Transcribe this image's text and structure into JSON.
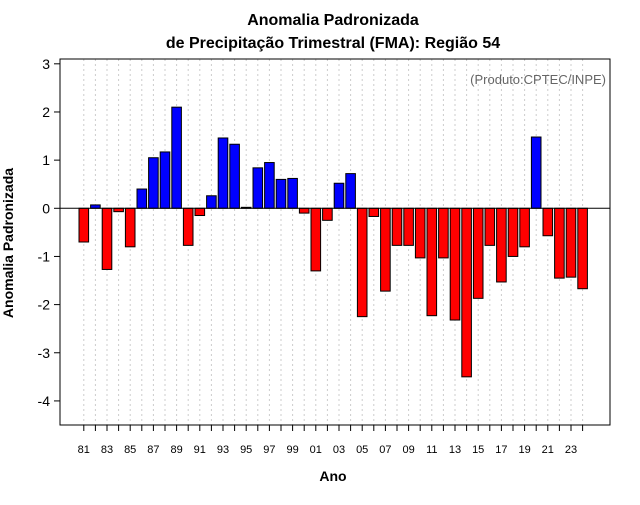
{
  "chart_data": {
    "type": "bar",
    "title_line1": "Anomalia Padronizada",
    "title_line2": "de Precipitação Trimestral (FMA): Região 54",
    "annotation": "(Produto:CPTEC/INPE)",
    "xlabel": "Ano",
    "ylabel": "Anomalia Padronizada",
    "ylim": [
      -4.5,
      3.1
    ],
    "yticks": [
      3,
      2,
      1,
      0,
      -1,
      -2,
      -3,
      -4
    ],
    "ytick_labels": [
      "3",
      "2",
      "1",
      "0",
      "-1",
      "-2",
      "-3",
      "-4"
    ],
    "grid": "vertical dotted",
    "positive_color": "#0000ff",
    "negative_color": "#ff0000",
    "categories": [
      "81",
      "82",
      "83",
      "84",
      "85",
      "86",
      "87",
      "88",
      "89",
      "90",
      "91",
      "92",
      "93",
      "94",
      "95",
      "96",
      "97",
      "98",
      "99",
      "00",
      "01",
      "02",
      "03",
      "04",
      "05",
      "06",
      "07",
      "08",
      "09",
      "10",
      "11",
      "12",
      "13",
      "14",
      "15",
      "16",
      "17",
      "18",
      "19",
      "20",
      "21",
      "22",
      "23",
      "24"
    ],
    "xtick_labels": [
      "81",
      "83",
      "85",
      "87",
      "89",
      "91",
      "93",
      "95",
      "97",
      "99",
      "01",
      "03",
      "05",
      "07",
      "09",
      "11",
      "13",
      "15",
      "17",
      "19",
      "21",
      "23"
    ],
    "values": [
      -0.7,
      0.07,
      -1.27,
      -0.07,
      -0.8,
      0.4,
      1.05,
      1.17,
      2.1,
      -0.77,
      -0.15,
      0.26,
      1.46,
      1.33,
      0.02,
      0.84,
      0.95,
      0.6,
      0.62,
      -0.1,
      -1.3,
      -0.25,
      0.52,
      0.72,
      -2.25,
      -0.17,
      -1.72,
      -0.77,
      -0.77,
      -1.03,
      -2.23,
      -1.03,
      -2.32,
      -3.5,
      -1.87,
      -0.77,
      -1.53,
      -1.0,
      -0.8,
      1.48,
      -0.57,
      -1.45,
      -1.43,
      -1.67
    ]
  }
}
